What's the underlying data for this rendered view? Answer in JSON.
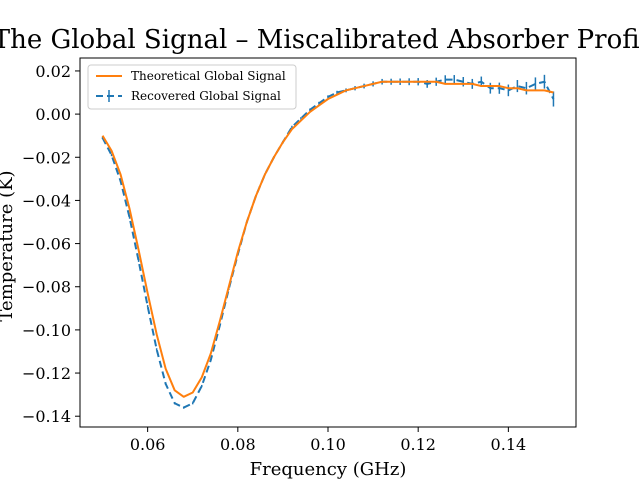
{
  "chart_data": {
    "type": "line",
    "title": "The Global Signal – Miscalibrated Absorber Profile",
    "xlabel": "Frequency (GHz)",
    "ylabel": "Temperature (K)",
    "xlim": [
      0.045,
      0.155
    ],
    "ylim": [
      -0.145,
      0.026
    ],
    "xticks": [
      0.06,
      0.08,
      0.1,
      0.12,
      0.14
    ],
    "xtick_labels": [
      "0.06",
      "0.08",
      "0.10",
      "0.12",
      "0.14"
    ],
    "yticks": [
      0.02,
      0.0,
      -0.02,
      -0.04,
      -0.06,
      -0.08,
      -0.1,
      -0.12,
      -0.14
    ],
    "ytick_labels": [
      "0.02",
      "0.00",
      "−0.02",
      "−0.04",
      "−0.06",
      "−0.08",
      "−0.10",
      "−0.12",
      "−0.14"
    ],
    "grid": false,
    "legend_position": "top-left",
    "series": [
      {
        "name": "Theoretical Global Signal",
        "color": "#ff7f0e",
        "style": "solid",
        "x": [
          0.05,
          0.052,
          0.054,
          0.056,
          0.058,
          0.06,
          0.062,
          0.064,
          0.066,
          0.068,
          0.07,
          0.072,
          0.074,
          0.076,
          0.078,
          0.08,
          0.082,
          0.084,
          0.086,
          0.088,
          0.09,
          0.092,
          0.094,
          0.096,
          0.098,
          0.1,
          0.102,
          0.104,
          0.106,
          0.108,
          0.11,
          0.112,
          0.114,
          0.116,
          0.118,
          0.12,
          0.122,
          0.124,
          0.126,
          0.128,
          0.13,
          0.132,
          0.134,
          0.136,
          0.138,
          0.14,
          0.142,
          0.144,
          0.146,
          0.148,
          0.15
        ],
        "y": [
          -0.01,
          -0.017,
          -0.028,
          -0.044,
          -0.063,
          -0.083,
          -0.102,
          -0.118,
          -0.128,
          -0.131,
          -0.129,
          -0.122,
          -0.111,
          -0.096,
          -0.08,
          -0.064,
          -0.05,
          -0.038,
          -0.028,
          -0.02,
          -0.013,
          -0.007,
          -0.003,
          0.001,
          0.004,
          0.007,
          0.009,
          0.011,
          0.012,
          0.013,
          0.014,
          0.015,
          0.015,
          0.015,
          0.015,
          0.015,
          0.015,
          0.015,
          0.014,
          0.014,
          0.014,
          0.014,
          0.013,
          0.013,
          0.013,
          0.012,
          0.012,
          0.011,
          0.011,
          0.011,
          0.01
        ]
      },
      {
        "name": "Recovered Global Signal",
        "color": "#1f77b4",
        "style": "dashed-errorbar",
        "x": [
          0.05,
          0.052,
          0.054,
          0.056,
          0.058,
          0.06,
          0.062,
          0.064,
          0.066,
          0.068,
          0.07,
          0.072,
          0.074,
          0.076,
          0.078,
          0.08,
          0.082,
          0.084,
          0.086,
          0.088,
          0.09,
          0.092,
          0.094,
          0.096,
          0.098,
          0.1,
          0.102,
          0.104,
          0.106,
          0.108,
          0.11,
          0.112,
          0.114,
          0.116,
          0.118,
          0.12,
          0.122,
          0.124,
          0.126,
          0.128,
          0.13,
          0.132,
          0.134,
          0.136,
          0.138,
          0.14,
          0.142,
          0.144,
          0.146,
          0.148,
          0.15
        ],
        "y": [
          -0.011,
          -0.019,
          -0.031,
          -0.048,
          -0.068,
          -0.089,
          -0.109,
          -0.125,
          -0.134,
          -0.136,
          -0.134,
          -0.126,
          -0.114,
          -0.098,
          -0.081,
          -0.065,
          -0.05,
          -0.038,
          -0.028,
          -0.02,
          -0.013,
          -0.006,
          -0.002,
          0.002,
          0.005,
          0.008,
          0.01,
          0.011,
          0.012,
          0.013,
          0.014,
          0.015,
          0.015,
          0.015,
          0.015,
          0.015,
          0.014,
          0.015,
          0.016,
          0.016,
          0.015,
          0.014,
          0.015,
          0.012,
          0.012,
          0.011,
          0.013,
          0.012,
          0.014,
          0.015,
          0.007
        ],
        "yerr": [
          0.0005,
          0.0005,
          0.0005,
          0.0005,
          0.0005,
          0.0005,
          0.0005,
          0.0005,
          0.0005,
          0.0005,
          0.0005,
          0.0005,
          0.0005,
          0.0005,
          0.0005,
          0.0005,
          0.0005,
          0.0005,
          0.0005,
          0.0005,
          0.0006,
          0.0006,
          0.0006,
          0.0006,
          0.0007,
          0.0007,
          0.0008,
          0.0009,
          0.001,
          0.0011,
          0.0012,
          0.0013,
          0.0014,
          0.0015,
          0.0016,
          0.0017,
          0.0018,
          0.0019,
          0.002,
          0.0021,
          0.0022,
          0.0023,
          0.0024,
          0.0025,
          0.0026,
          0.0027,
          0.0028,
          0.0029,
          0.003,
          0.0032,
          0.0035
        ]
      }
    ]
  }
}
